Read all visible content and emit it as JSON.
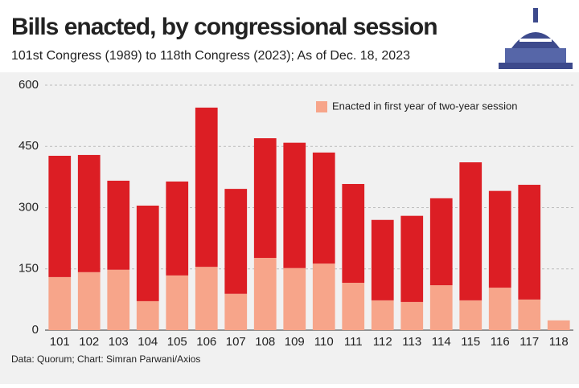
{
  "chart_data": {
    "type": "stacked_bar",
    "title": "Bills enacted, by congressional session",
    "subtitle": "101st Congress (1989) to 118th Congress (2023); As of Dec. 18, 2023",
    "source": "Data: Quorum; Chart: Simran Parwani/Axios",
    "categories": [
      "101",
      "102",
      "103",
      "104",
      "105",
      "106",
      "107",
      "108",
      "109",
      "110",
      "111",
      "112",
      "113",
      "114",
      "115",
      "116",
      "117",
      "118"
    ],
    "series": [
      {
        "name": "Enacted in first year of two-year session",
        "color": "#f7a58a",
        "values": [
          130,
          142,
          148,
          71,
          134,
          155,
          89,
          177,
          152,
          163,
          116,
          73,
          69,
          110,
          73,
          104,
          75,
          24
        ]
      },
      {
        "color": "#dc1e24",
        "values": [
          297,
          287,
          218,
          234,
          230,
          390,
          257,
          293,
          307,
          272,
          242,
          197,
          211,
          213,
          338,
          237,
          281,
          0
        ]
      }
    ],
    "ylim": [
      0,
      600
    ],
    "yticks": [
      0,
      150,
      300,
      450,
      600
    ],
    "grid": true,
    "legend": "top-right"
  }
}
